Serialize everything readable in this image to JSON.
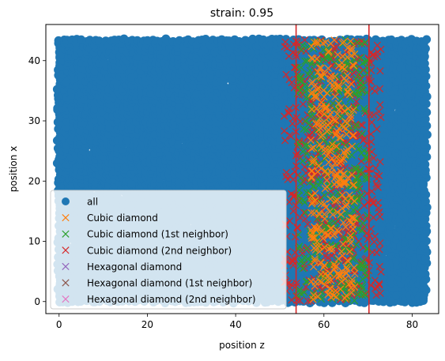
{
  "chart_data": {
    "type": "scatter",
    "title": "strain: 0.95",
    "xlabel": "position z",
    "ylabel": "position x",
    "xlim": [
      -3,
      86
    ],
    "ylim": [
      -2,
      46
    ],
    "xticks": [
      0,
      20,
      40,
      60,
      80
    ],
    "yticks": [
      0,
      10,
      20,
      30,
      40
    ],
    "grid": false,
    "legend": {
      "placement": "lower-left",
      "entries": [
        {
          "label": "all",
          "marker": "circle",
          "color": "#1f77b4"
        },
        {
          "label": "Cubic diamond",
          "marker": "x",
          "color": "#ff7f0e"
        },
        {
          "label": "Cubic diamond (1st neighbor)",
          "marker": "x",
          "color": "#2ca02c"
        },
        {
          "label": "Cubic diamond (2nd neighbor)",
          "marker": "x",
          "color": "#d62728"
        },
        {
          "label": "Hexagonal diamond",
          "marker": "x",
          "color": "#9467bd"
        },
        {
          "label": "Hexagonal diamond (1st neighbor)",
          "marker": "x",
          "color": "#8c564b"
        },
        {
          "label": "Hexagonal diamond (2nd neighbor)",
          "marker": "x",
          "color": "#e377c2"
        }
      ]
    },
    "series": [
      {
        "name": "all",
        "region": {
          "z": [
            0,
            83
          ],
          "x": [
            0,
            43.5
          ]
        }
      },
      {
        "name": "Cubic diamond",
        "region": {
          "z": [
            57,
            67
          ],
          "x": [
            0,
            43.5
          ]
        }
      },
      {
        "name": "Cubic diamond (1st neighbor)",
        "region": {
          "z": [
            54,
            70
          ],
          "x": [
            0,
            43.5
          ]
        }
      },
      {
        "name": "Cubic diamond (2nd neighbor)",
        "region": {
          "z": [
            51,
            73
          ],
          "x": [
            0,
            43.5
          ]
        }
      },
      {
        "name": "Hexagonal diamond",
        "points": []
      },
      {
        "name": "Hexagonal diamond (1st neighbor)",
        "points": []
      },
      {
        "name": "Hexagonal diamond (2nd neighbor)",
        "points": []
      }
    ],
    "vlines": [
      {
        "x": 53.7,
        "color": "#d62728"
      },
      {
        "x": 70.2,
        "color": "#d62728"
      }
    ]
  }
}
